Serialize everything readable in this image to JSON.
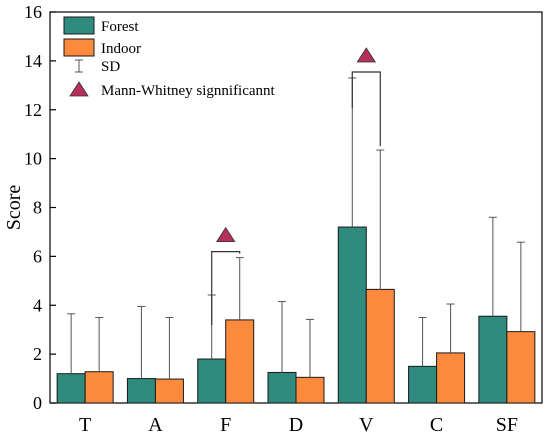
{
  "chart_data": {
    "type": "bar",
    "ylabel": "Score",
    "ylim": [
      0,
      16
    ],
    "yticks": [
      0,
      2,
      4,
      6,
      8,
      10,
      12,
      14,
      16
    ],
    "categories": [
      "T",
      "A",
      "F",
      "D",
      "V",
      "C",
      "SF"
    ],
    "series": [
      {
        "name": "Forest",
        "color": "#2e8b7e",
        "values": [
          1.2,
          1.0,
          1.8,
          1.25,
          7.2,
          1.5,
          3.55
        ],
        "sd_upper": [
          3.65,
          3.95,
          4.42,
          4.15,
          13.3,
          3.5,
          7.6
        ]
      },
      {
        "name": "Indoor",
        "color": "#fb8a3c",
        "values": [
          1.28,
          0.98,
          3.4,
          1.05,
          4.65,
          2.05,
          2.92
        ],
        "sd_upper": [
          3.5,
          3.5,
          5.95,
          3.42,
          10.35,
          4.05,
          6.58
        ]
      }
    ],
    "legend": {
      "placement": "top-left",
      "sd_label": "SD",
      "significance_label": "Mann-Whitney signnificannt",
      "significance_color": "#b5315a"
    },
    "significant_categories": [
      "F",
      "V"
    ],
    "grid": false
  }
}
